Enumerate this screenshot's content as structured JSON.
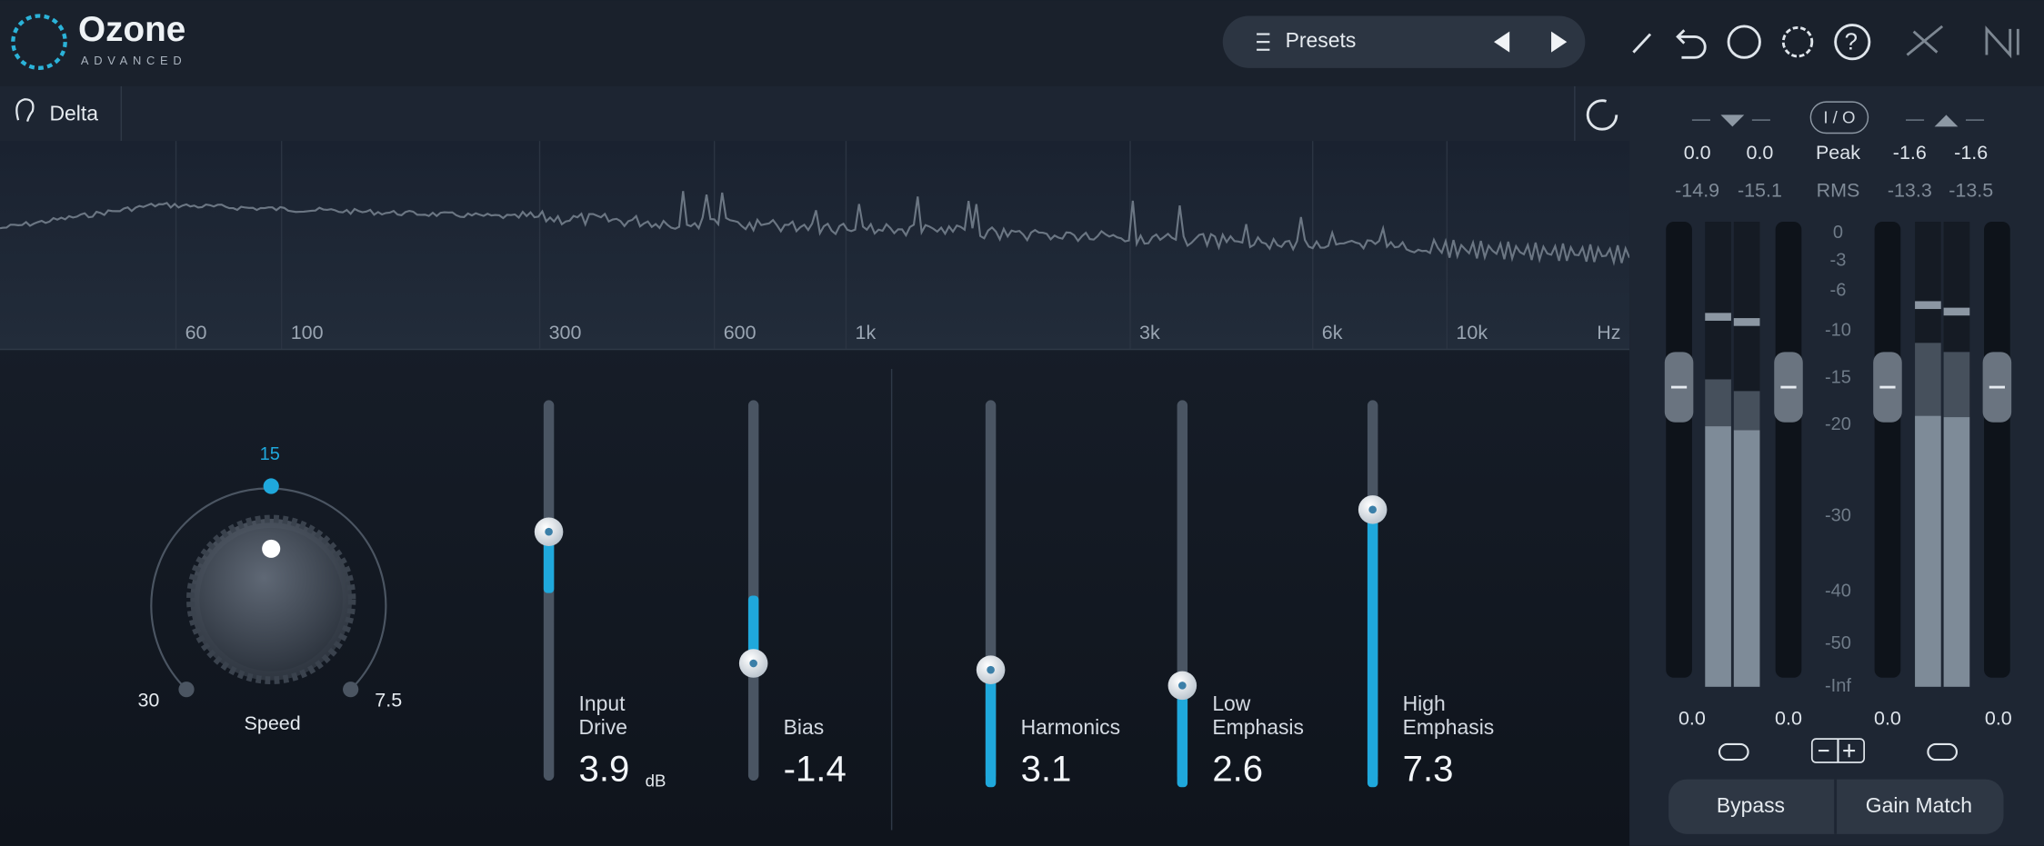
{
  "header": {
    "app_name": "Ozone",
    "edition": "ADVANCED",
    "presets": "Presets"
  },
  "delta_bar": {
    "label": "Delta"
  },
  "spectrum": {
    "frequency_labels": [
      "60",
      "100",
      "300",
      "600",
      "1k",
      "3k",
      "6k",
      "10k",
      "Hz"
    ]
  },
  "speed_knob": {
    "top_label": "15",
    "left_label": "30",
    "right_label": "7.5",
    "label": "Speed"
  },
  "sliders": [
    {
      "label": [
        "Input",
        "Drive"
      ],
      "value": "3.9",
      "unit": "dB"
    },
    {
      "label": [
        "Bias"
      ],
      "value": "-1.4"
    },
    {
      "label": [
        "Harmonics"
      ],
      "value": "3.1"
    },
    {
      "label": [
        "Low",
        "Emphasis"
      ],
      "value": "2.6"
    },
    {
      "label": [
        "High",
        "Emphasis"
      ],
      "value": "7.3"
    }
  ],
  "meter": {
    "io_label": "I / O",
    "peak_row": [
      "0.0",
      "0.0",
      "Peak",
      "-1.6",
      "-1.6"
    ],
    "rms_row": [
      "-14.9",
      "-15.1",
      "RMS",
      "-13.3",
      "-13.5"
    ],
    "scale": [
      "0",
      "-3",
      "-6",
      "-10",
      "-15",
      "-20",
      "-30",
      "-40",
      "-50",
      "-Inf"
    ],
    "fader_values": [
      "0.0",
      "0.0",
      "0.0",
      "0.0"
    ],
    "buttons": [
      "Bypass",
      "Gain Match"
    ]
  }
}
